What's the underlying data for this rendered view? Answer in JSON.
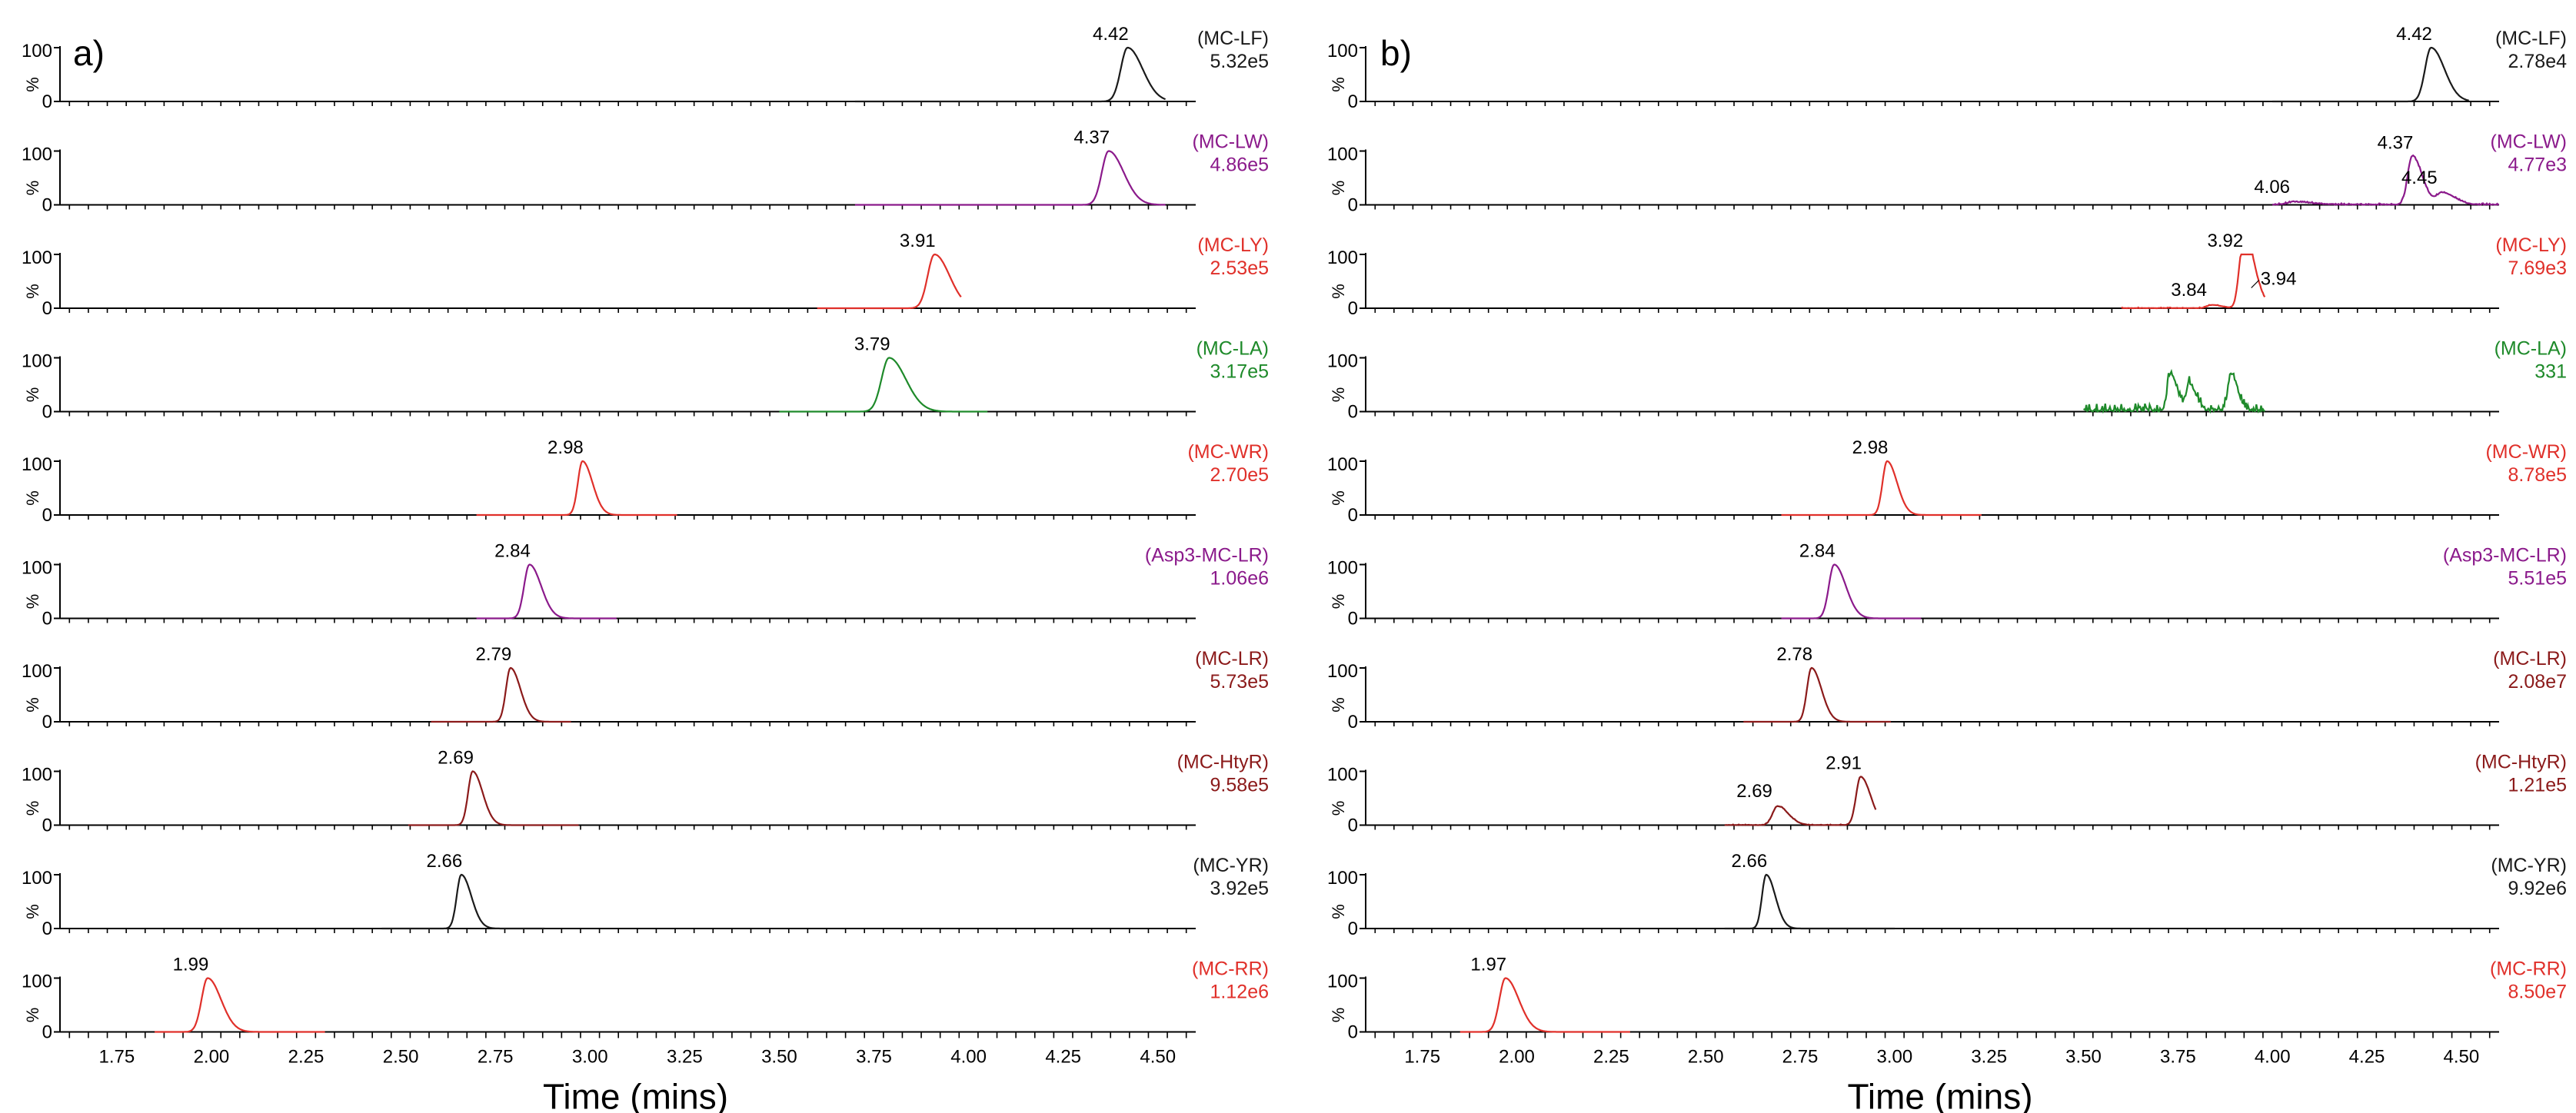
{
  "chart_data": [
    {
      "type": "line",
      "panel_label": "a)",
      "xlabel": "Time (mins)",
      "xlim": [
        1.6,
        4.6
      ],
      "x_ticks": [
        "1.75",
        "2.00",
        "2.25",
        "2.50",
        "2.75",
        "3.00",
        "3.25",
        "3.50",
        "3.75",
        "4.00",
        "4.25",
        "4.50"
      ],
      "ylim": [
        0,
        100
      ],
      "y_ticks": [
        "100",
        "0"
      ],
      "ylabel": "%",
      "traces": [
        {
          "name": "(MC-LF)",
          "intensity": "5.32e5",
          "color": "#1a1a1a",
          "range": [
            3.7,
            4.52
          ],
          "peaks": [
            {
              "x": 4.42,
              "h": 100,
              "w": 0.018,
              "label": "4.42"
            }
          ],
          "noise": 0
        },
        {
          "name": "(MC-LW)",
          "intensity": "4.86e5",
          "color": "#8b1a8b",
          "range": [
            3.7,
            4.52
          ],
          "peaks": [
            {
              "x": 4.37,
              "h": 100,
              "w": 0.018,
              "label": "4.37"
            }
          ],
          "noise": 0
        },
        {
          "name": "(MC-LY)",
          "intensity": "2.53e5",
          "color": "#e0302a",
          "range": [
            3.6,
            3.98
          ],
          "peaks": [
            {
              "x": 3.91,
              "h": 100,
              "w": 0.018,
              "label": "3.91"
            }
          ],
          "noise": 0
        },
        {
          "name": "(MC-LA)",
          "intensity": "3.17e5",
          "color": "#1e8a2a",
          "range": [
            3.5,
            4.05
          ],
          "peaks": [
            {
              "x": 3.79,
              "h": 100,
              "w": 0.02,
              "label": "3.79"
            }
          ],
          "noise": 0
        },
        {
          "name": "(MC-WR)",
          "intensity": "2.70e5",
          "color": "#e0302a",
          "range": [
            2.7,
            3.23
          ],
          "peaks": [
            {
              "x": 2.98,
              "h": 100,
              "w": 0.012,
              "label": "2.98"
            }
          ],
          "noise": 0
        },
        {
          "name": "(Asp3-MC-LR)",
          "intensity": "1.06e6",
          "color": "#8b1a8b",
          "range": [
            2.7,
            3.07
          ],
          "peaks": [
            {
              "x": 2.84,
              "h": 100,
              "w": 0.014,
              "label": "2.84"
            }
          ],
          "noise": 0
        },
        {
          "name": "(MC-LR)",
          "intensity": "5.73e5",
          "color": "#8b1a1a",
          "range": [
            2.58,
            2.95
          ],
          "peaks": [
            {
              "x": 2.79,
              "h": 100,
              "w": 0.012,
              "label": "2.79"
            }
          ],
          "noise": 0
        },
        {
          "name": "(MC-HtyR)",
          "intensity": "9.58e5",
          "color": "#8b1a1a",
          "range": [
            2.52,
            2.97
          ],
          "peaks": [
            {
              "x": 2.69,
              "h": 100,
              "w": 0.012,
              "label": "2.69"
            }
          ],
          "noise": 0
        },
        {
          "name": "(MC-YR)",
          "intensity": "3.92e5",
          "color": "#1a1a1a",
          "range": [
            2.45,
            2.88
          ],
          "peaks": [
            {
              "x": 2.66,
              "h": 100,
              "w": 0.012,
              "label": "2.66"
            }
          ],
          "noise": 0
        },
        {
          "name": "(MC-RR)",
          "intensity": "1.12e6",
          "color": "#e0302a",
          "range": [
            1.85,
            2.3
          ],
          "peaks": [
            {
              "x": 1.99,
              "h": 100,
              "w": 0.016,
              "label": "1.99"
            }
          ],
          "noise": 0
        }
      ]
    },
    {
      "type": "line",
      "panel_label": "b)",
      "xlabel": "Time (mins)",
      "xlim": [
        1.6,
        4.6
      ],
      "x_ticks": [
        "1.75",
        "2.00",
        "2.25",
        "2.50",
        "2.75",
        "3.00",
        "3.25",
        "3.50",
        "3.75",
        "4.00",
        "4.25",
        "4.50"
      ],
      "ylim": [
        0,
        100
      ],
      "y_ticks": [
        "100",
        "0"
      ],
      "ylabel": "%",
      "traces": [
        {
          "name": "(MC-LF)",
          "intensity": "2.78e4",
          "color": "#1a1a1a",
          "range": [
            4.0,
            4.52
          ],
          "peaks": [
            {
              "x": 4.42,
              "h": 100,
              "w": 0.016,
              "label": "4.42"
            }
          ],
          "noise": 0
        },
        {
          "name": "(MC-LW)",
          "intensity": "4.77e3",
          "color": "#8b1a8b",
          "range": [
            4.0,
            4.6
          ],
          "peaks": [
            {
              "x": 4.06,
              "h": 5,
              "w": 0.02,
              "label": "4.06"
            },
            {
              "x": 4.37,
              "h": 90,
              "w": 0.012,
              "label": "4.37"
            },
            {
              "x": 4.45,
              "h": 22,
              "w": 0.015,
              "label": "4.45"
            }
          ],
          "noise": 4
        },
        {
          "name": "(MC-LY)",
          "intensity": "7.69e3",
          "color": "#e0302a",
          "range": [
            3.6,
            3.98
          ],
          "peaks": [
            {
              "x": 3.84,
              "h": 6,
              "w": 0.012,
              "label": "3.84"
            },
            {
              "x": 3.92,
              "h": 100,
              "w": 0.01,
              "label": "3.92"
            },
            {
              "x": 3.94,
              "h": 55,
              "w": 0.012,
              "label": "3.94"
            }
          ],
          "noise": 2
        },
        {
          "name": "(MC-LA)",
          "intensity": "331",
          "color": "#1e8a2a",
          "range": [
            3.5,
            3.98
          ],
          "peaks": [
            {
              "x": 3.73,
              "h": 70,
              "w": 0.008,
              "label": ""
            },
            {
              "x": 3.78,
              "h": 50,
              "w": 0.008,
              "label": ""
            },
            {
              "x": 3.89,
              "h": 68,
              "w": 0.008,
              "label": ""
            }
          ],
          "noise": 22
        },
        {
          "name": "(MC-WR)",
          "intensity": "8.78e5",
          "color": "#e0302a",
          "range": [
            2.7,
            3.23
          ],
          "peaks": [
            {
              "x": 2.98,
              "h": 100,
              "w": 0.012,
              "label": "2.98"
            }
          ],
          "noise": 0
        },
        {
          "name": "(Asp3-MC-LR)",
          "intensity": "5.51e5",
          "color": "#8b1a8b",
          "range": [
            2.7,
            3.07
          ],
          "peaks": [
            {
              "x": 2.84,
              "h": 100,
              "w": 0.014,
              "label": "2.84"
            }
          ],
          "noise": 0
        },
        {
          "name": "(MC-LR)",
          "intensity": "2.08e7",
          "color": "#8b1a1a",
          "range": [
            2.6,
            2.99
          ],
          "peaks": [
            {
              "x": 2.78,
              "h": 100,
              "w": 0.012,
              "label": "2.78"
            }
          ],
          "noise": 0
        },
        {
          "name": "(MC-HtyR)",
          "intensity": "1.21e5",
          "color": "#8b1a1a",
          "range": [
            2.55,
            2.95
          ],
          "peaks": [
            {
              "x": 2.69,
              "h": 35,
              "w": 0.013,
              "label": "2.69"
            },
            {
              "x": 2.91,
              "h": 90,
              "w": 0.012,
              "label": "2.91"
            }
          ],
          "noise": 2
        },
        {
          "name": "(MC-YR)",
          "intensity": "9.92e6",
          "color": "#1a1a1a",
          "range": [
            2.55,
            3.0
          ],
          "peaks": [
            {
              "x": 2.66,
              "h": 100,
              "w": 0.011,
              "label": "2.66"
            }
          ],
          "noise": 0
        },
        {
          "name": "(MC-RR)",
          "intensity": "8.50e7",
          "color": "#e0302a",
          "range": [
            1.85,
            2.3
          ],
          "peaks": [
            {
              "x": 1.97,
              "h": 100,
              "w": 0.016,
              "label": "1.97"
            }
          ],
          "noise": 0
        }
      ]
    }
  ]
}
